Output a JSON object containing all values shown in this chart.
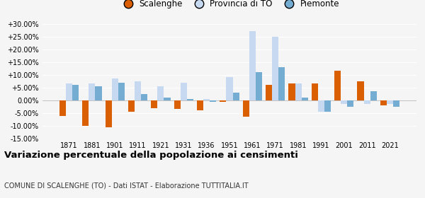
{
  "years": [
    1871,
    1881,
    1901,
    1911,
    1921,
    1931,
    1936,
    1951,
    1961,
    1971,
    1981,
    1991,
    2001,
    2011,
    2021
  ],
  "scalenghe": [
    -6.0,
    -10.0,
    -10.5,
    -4.5,
    -3.0,
    -3.5,
    -4.0,
    -0.5,
    -6.5,
    6.0,
    6.5,
    6.5,
    11.5,
    7.5,
    -2.0
  ],
  "provincia_to": [
    6.5,
    6.5,
    8.5,
    7.5,
    5.5,
    7.0,
    0.5,
    9.0,
    27.0,
    25.0,
    6.5,
    -4.5,
    -1.5,
    -1.5,
    -1.5
  ],
  "piemonte": [
    6.0,
    5.5,
    7.0,
    2.5,
    1.0,
    0.5,
    -0.5,
    3.0,
    11.0,
    13.0,
    1.0,
    -4.5,
    -2.5,
    3.5,
    -2.5
  ],
  "color_scalenghe": "#d95f02",
  "color_provincia": "#c6d9f0",
  "color_piemonte": "#74add1",
  "ylim": [
    -15,
    30
  ],
  "yticks": [
    -15,
    -10,
    -5,
    0,
    5,
    10,
    15,
    20,
    25,
    30
  ],
  "title": "Variazione percentuale della popolazione ai censimenti",
  "subtitle": "COMUNE DI SCALENGHE (TO) - Dati ISTAT - Elaborazione TUTTITALIA.IT",
  "legend_labels": [
    "Scalenghe",
    "Provincia di TO",
    "Piemonte"
  ],
  "background_color": "#f5f5f5"
}
